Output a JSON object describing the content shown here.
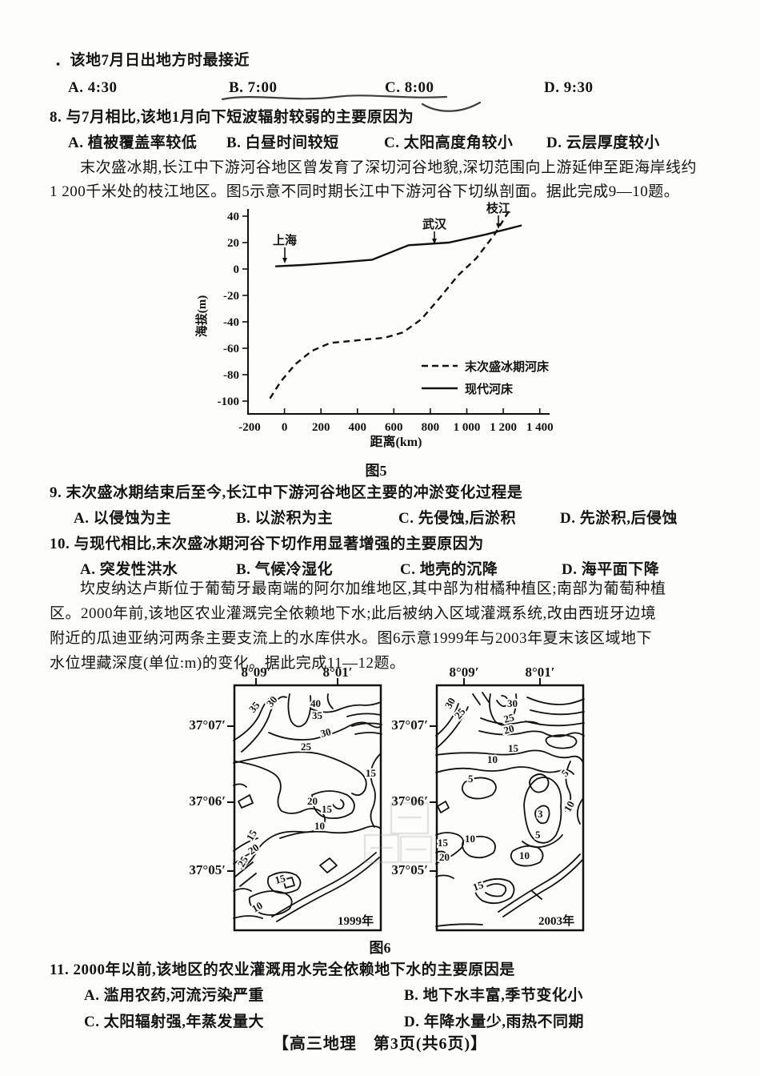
{
  "page": {
    "footer": "【高三地理　第3页(共6页)】"
  },
  "questions": {
    "q7": {
      "stem": "．该地7月日出地方时最接近",
      "options": [
        "A. 4:30",
        "B. 7:00",
        "C. 8:00",
        "D. 9:30"
      ]
    },
    "q8": {
      "stem": "8. 与7月相比,该地1月向下短波辐射较弱的主要原因为",
      "options": [
        "A. 植被覆盖率较低",
        "B. 白昼时间较短",
        "C. 太阳高度角较小",
        "D. 云层厚度较小"
      ]
    },
    "q9": {
      "stem": "9. 末次盛冰期结束后至今,长江中下游河谷地区主要的冲淤变化过程是",
      "options": [
        "A. 以侵蚀为主",
        "B. 以淤积为主",
        "C. 先侵蚀,后淤积",
        "D. 先淤积,后侵蚀"
      ]
    },
    "q10": {
      "stem": "10. 与现代相比,末次盛冰期河谷下切作用显著增强的主要原因为",
      "options": [
        "A. 突发性洪水",
        "B. 气候冷湿化",
        "C. 地壳的沉降",
        "D. 海平面下降"
      ]
    },
    "q11": {
      "stem": "11. 2000年以前,该地区的农业灌溉用水完全依赖地下水的主要原因是",
      "options": [
        "A. 滥用农药,河流污染严重",
        "B. 地下水丰富,季节变化小",
        "C. 太阳辐射强,年蒸发量大",
        "D. 年降水量少,雨热不同期"
      ]
    }
  },
  "passages": {
    "p1": [
      "末次盛冰期,长江中下游河谷地区曾发育了深切河谷地貌,深切范围向上游延伸至距海岸线约",
      "1 200千米处的枝江地区。图5示意不同时期长江中下游河谷下切纵剖面。据此完成9—10题。"
    ],
    "p2": [
      "坎皮纳达卢斯位于葡萄牙最南端的阿尔加维地区,其中部为柑橘种植区;南部为葡萄种植",
      "区。2000年前,该地区农业灌溉完全依赖地下水;此后被纳入区域灌溉系统,改由西班牙边境",
      "附近的瓜迪亚纳河两条主要支流上的水库供水。图6示意1999年与2003年夏末该区域地下",
      "水位埋藏深度(单位:m)的变化。据此完成11—12题。"
    ]
  },
  "figure5": {
    "caption": "图5",
    "chart_data": {
      "type": "line",
      "xlabel": "距离(km)",
      "ylabel": "海拔(m)",
      "xlim": [
        -200,
        1400
      ],
      "ylim": [
        -100,
        40
      ],
      "xticks": [
        -200,
        0,
        200,
        400,
        600,
        800,
        1000,
        1200,
        1400
      ],
      "xtick_labels": [
        "-200",
        "0",
        "200",
        "400",
        "600",
        "800",
        "1 000",
        "1 200",
        "1 400"
      ],
      "yticks": [
        40,
        20,
        0,
        -20,
        -40,
        -60,
        -80,
        -100
      ],
      "ytick_labels": [
        "40",
        "20",
        "0",
        "-20",
        "-40",
        "-60",
        "-80",
        "-100"
      ],
      "grid": false,
      "legend_position": "lower right",
      "series": [
        {
          "name": "末次盛冰期河床",
          "style": "dashed",
          "points": [
            [
              -80,
              -98
            ],
            [
              -20,
              -85
            ],
            [
              60,
              -72
            ],
            [
              150,
              -62
            ],
            [
              250,
              -56
            ],
            [
              400,
              -54
            ],
            [
              550,
              -52
            ],
            [
              650,
              -48
            ],
            [
              750,
              -38
            ],
            [
              850,
              -22
            ],
            [
              950,
              -5
            ],
            [
              1050,
              8
            ],
            [
              1150,
              26
            ],
            [
              1230,
              44
            ]
          ]
        },
        {
          "name": "现代河床",
          "style": "solid",
          "points": [
            [
              -50,
              2
            ],
            [
              100,
              3
            ],
            [
              300,
              5
            ],
            [
              480,
              7
            ],
            [
              680,
              18
            ],
            [
              900,
              20
            ],
            [
              1100,
              26
            ],
            [
              1300,
              33
            ]
          ]
        }
      ],
      "annotations": [
        {
          "text": "上海",
          "x": 0,
          "y": 2
        },
        {
          "text": "武汉",
          "x": 820,
          "y": 20
        },
        {
          "text": "枝江",
          "x": 1170,
          "y": 30
        }
      ]
    }
  },
  "figure6": {
    "caption": "图6",
    "unit_note": "地下水位埋藏深度(单位:m)",
    "maps": [
      {
        "year": "1999年",
        "lon_labels": [
          "8°09′",
          "8°01′"
        ],
        "lat_labels": [
          "37°07′",
          "37°06′",
          "37°05′"
        ],
        "contour_labels": [
          "35",
          "30",
          "40",
          "35",
          "30",
          "25",
          "15",
          "20",
          "15",
          "10",
          "15",
          "20",
          "25",
          "15",
          "10"
        ]
      },
      {
        "year": "2003年",
        "lon_labels": [
          "8°09′",
          "8°01′"
        ],
        "lat_labels": [
          "37°07′",
          "37°06′",
          "37°05′"
        ],
        "contour_labels": [
          "30",
          "25",
          "30",
          "25",
          "20",
          "15",
          "10",
          "5",
          "5",
          "3",
          "10",
          "5",
          "10",
          "15",
          "20",
          "10",
          "15"
        ]
      }
    ]
  }
}
